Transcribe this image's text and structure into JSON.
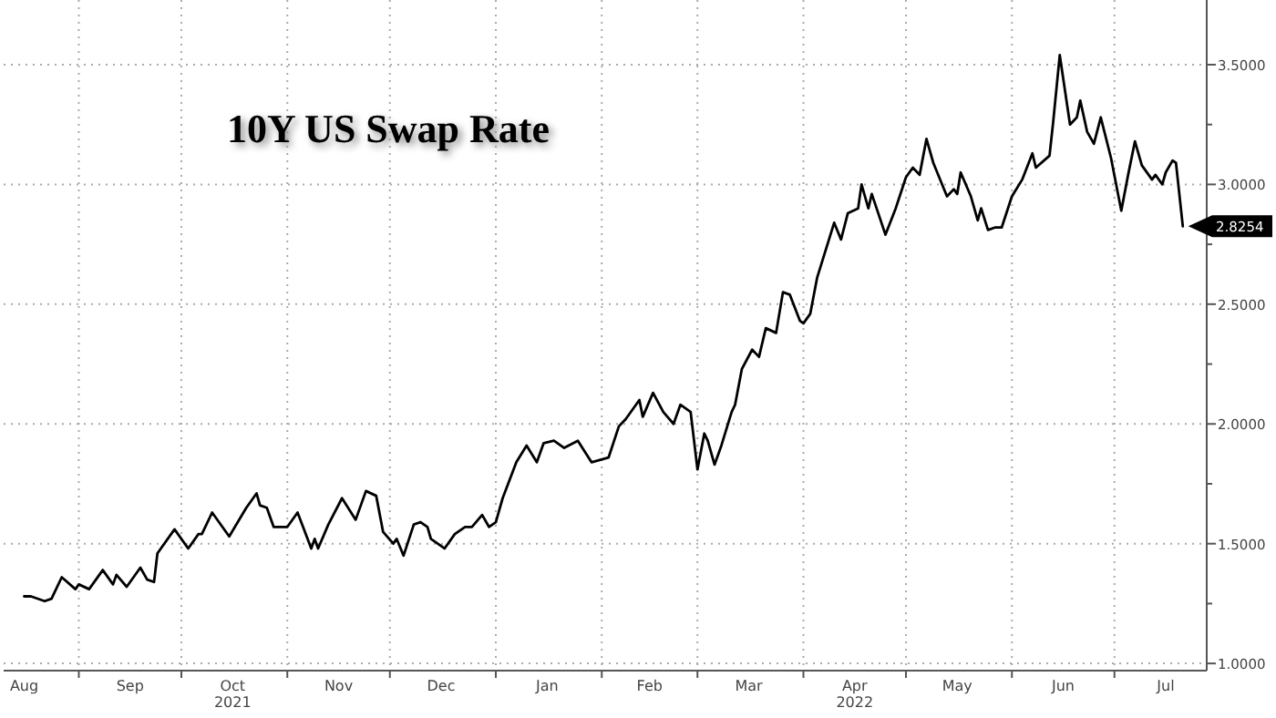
{
  "chart_data": {
    "type": "line",
    "title": "10Y US Swap Rate",
    "series": [
      {
        "color": "#000000",
        "x": [
          "2021-08-16",
          "2021-08-18",
          "2021-08-22",
          "2021-08-24",
          "2021-08-27",
          "2021-08-31",
          "2021-09-01",
          "2021-09-04",
          "2021-09-08",
          "2021-09-11",
          "2021-09-12",
          "2021-09-15",
          "2021-09-19",
          "2021-09-21",
          "2021-09-23",
          "2021-09-24",
          "2021-09-29",
          "2021-10-03",
          "2021-10-06",
          "2021-10-07",
          "2021-10-10",
          "2021-10-15",
          "2021-10-20",
          "2021-10-23",
          "2021-10-24",
          "2021-10-26",
          "2021-10-28",
          "2021-11-01",
          "2021-11-04",
          "2021-11-08",
          "2021-11-09",
          "2021-11-10",
          "2021-11-13",
          "2021-11-17",
          "2021-11-21",
          "2021-11-24",
          "2021-11-27",
          "2021-11-29",
          "2021-12-02",
          "2021-12-03",
          "2021-12-05",
          "2021-12-08",
          "2021-12-10",
          "2021-12-12",
          "2021-12-13",
          "2021-12-17",
          "2021-12-20",
          "2021-12-23",
          "2021-12-25",
          "2021-12-28",
          "2021-12-30",
          "2022-01-01",
          "2022-01-03",
          "2022-01-07",
          "2022-01-10",
          "2022-01-13",
          "2022-01-15",
          "2022-01-18",
          "2022-01-21",
          "2022-01-25",
          "2022-01-29",
          "2022-02-03",
          "2022-02-06",
          "2022-02-08",
          "2022-02-12",
          "2022-02-13",
          "2022-02-16",
          "2022-02-19",
          "2022-02-22",
          "2022-02-24",
          "2022-02-27",
          "2022-03-01",
          "2022-03-03",
          "2022-03-04",
          "2022-03-06",
          "2022-03-08",
          "2022-03-11",
          "2022-03-12",
          "2022-03-14",
          "2022-03-17",
          "2022-03-19",
          "2022-03-21",
          "2022-03-24",
          "2022-03-26",
          "2022-03-28",
          "2022-03-31",
          "2022-04-01",
          "2022-04-03",
          "2022-04-05",
          "2022-04-10",
          "2022-04-12",
          "2022-04-14",
          "2022-04-17",
          "2022-04-18",
          "2022-04-20",
          "2022-04-21",
          "2022-04-25",
          "2022-04-28",
          "2022-05-01",
          "2022-05-03",
          "2022-05-05",
          "2022-05-07",
          "2022-05-09",
          "2022-05-13",
          "2022-05-15",
          "2022-05-16",
          "2022-05-17",
          "2022-05-20",
          "2022-05-22",
          "2022-05-23",
          "2022-05-25",
          "2022-05-27",
          "2022-05-29",
          "2022-06-01",
          "2022-06-04",
          "2022-06-07",
          "2022-06-08",
          "2022-06-12",
          "2022-06-13",
          "2022-06-15",
          "2022-06-18",
          "2022-06-20",
          "2022-06-21",
          "2022-06-23",
          "2022-06-25",
          "2022-06-27",
          "2022-06-30",
          "2022-07-03",
          "2022-07-05",
          "2022-07-07",
          "2022-07-09",
          "2022-07-12",
          "2022-07-13",
          "2022-07-15",
          "2022-07-16",
          "2022-07-18",
          "2022-07-19",
          "2022-07-21"
        ],
        "values": [
          1.28,
          1.28,
          1.26,
          1.27,
          1.36,
          1.31,
          1.33,
          1.31,
          1.39,
          1.33,
          1.37,
          1.32,
          1.4,
          1.35,
          1.34,
          1.46,
          1.56,
          1.48,
          1.54,
          1.54,
          1.63,
          1.53,
          1.65,
          1.71,
          1.66,
          1.65,
          1.57,
          1.57,
          1.63,
          1.48,
          1.52,
          1.48,
          1.58,
          1.69,
          1.6,
          1.72,
          1.7,
          1.55,
          1.5,
          1.52,
          1.45,
          1.58,
          1.59,
          1.57,
          1.52,
          1.48,
          1.54,
          1.57,
          1.57,
          1.62,
          1.57,
          1.59,
          1.69,
          1.84,
          1.91,
          1.84,
          1.92,
          1.93,
          1.9,
          1.93,
          1.84,
          1.86,
          1.99,
          2.02,
          2.1,
          2.03,
          2.13,
          2.05,
          2.0,
          2.08,
          2.05,
          1.81,
          1.96,
          1.93,
          1.83,
          1.91,
          2.05,
          2.08,
          2.23,
          2.31,
          2.28,
          2.4,
          2.38,
          2.55,
          2.54,
          2.43,
          2.42,
          2.46,
          2.61,
          2.84,
          2.77,
          2.88,
          2.9,
          3.0,
          2.9,
          2.96,
          2.79,
          2.9,
          3.03,
          3.07,
          3.04,
          3.19,
          3.09,
          2.95,
          2.98,
          2.96,
          3.05,
          2.95,
          2.85,
          2.9,
          2.81,
          2.82,
          2.82,
          2.95,
          3.02,
          3.13,
          3.07,
          3.12,
          3.25,
          3.54,
          3.25,
          3.28,
          3.35,
          3.22,
          3.17,
          3.28,
          3.11,
          2.89,
          3.04,
          3.18,
          3.08,
          3.02,
          3.04,
          3.0,
          3.05,
          3.1,
          3.09,
          2.8254
        ]
      }
    ],
    "xlim": [
      "2021-08-10",
      "2022-07-28"
    ],
    "xticks": [
      {
        "value": "2021-08-16",
        "label": "Aug"
      },
      {
        "value": "2021-09-01",
        "label": null
      },
      {
        "value": "2021-09-16",
        "label": "Sep"
      },
      {
        "value": "2021-10-01",
        "label": null
      },
      {
        "value": "2021-10-16",
        "label": "Oct\n2021"
      },
      {
        "value": "2021-11-01",
        "label": null
      },
      {
        "value": "2021-11-16",
        "label": "Nov"
      },
      {
        "value": "2021-12-01",
        "label": null
      },
      {
        "value": "2021-12-16",
        "label": "Dec"
      },
      {
        "value": "2022-01-01",
        "label": null
      },
      {
        "value": "2022-01-16",
        "label": "Jan"
      },
      {
        "value": "2022-02-01",
        "label": null
      },
      {
        "value": "2022-02-15",
        "label": "Feb"
      },
      {
        "value": "2022-03-01",
        "label": null
      },
      {
        "value": "2022-03-16",
        "label": "Mar"
      },
      {
        "value": "2022-04-01",
        "label": null
      },
      {
        "value": "2022-04-16",
        "label": "Apr\n2022"
      },
      {
        "value": "2022-05-01",
        "label": null
      },
      {
        "value": "2022-05-16",
        "label": "May"
      },
      {
        "value": "2022-06-01",
        "label": null
      },
      {
        "value": "2022-06-16",
        "label": "Jun"
      },
      {
        "value": "2022-07-01",
        "label": null
      },
      {
        "value": "2022-07-16",
        "label": "Jul"
      }
    ],
    "ylim": [
      0.97,
      3.77
    ],
    "yticks": [
      {
        "value": 1,
        "label": "1.0000"
      },
      {
        "value": 1.25,
        "label": null
      },
      {
        "value": 1.5,
        "label": "1.5000"
      },
      {
        "value": 1.75,
        "label": null
      },
      {
        "value": 2,
        "label": "2.0000"
      },
      {
        "value": 2.25,
        "label": null
      },
      {
        "value": 2.5,
        "label": "2.5000"
      },
      {
        "value": 2.75,
        "label": null
      },
      {
        "value": 3,
        "label": "3.0000"
      },
      {
        "value": 3.25,
        "label": null
      },
      {
        "value": 3.5,
        "label": "3.5000"
      }
    ],
    "annotations": [
      {
        "text": "2.8254",
        "x": "2022-07-21",
        "y": 2.8254
      }
    ],
    "grid": true,
    "marker": "none",
    "line_style": "solid"
  }
}
